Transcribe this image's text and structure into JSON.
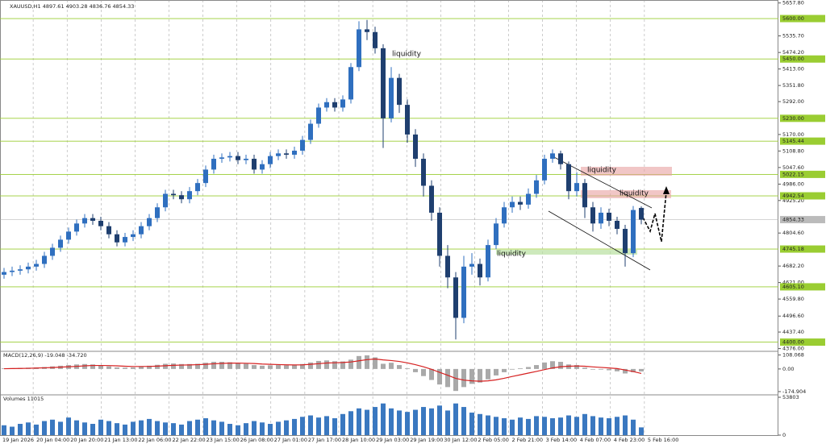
{
  "chart_data": {
    "type": "candlestick",
    "title": "XAUUSD,H1  4897.61 4903.28 4836.76 4854.33",
    "up_color": "#2f6fbf",
    "down_color": "#1f3f6f",
    "level_color": "#9acd32",
    "xlabels": [
      "19 Jan 2026",
      "20 Jan 04:00",
      "20 Jan 20:00",
      "21 Jan 13:00",
      "22 Jan 06:00",
      "22 Jan 22:00",
      "23 Jan 15:00",
      "26 Jan 08:00",
      "27 Jan 01:00",
      "27 Jan 17:00",
      "28 Jan 10:00",
      "29 Jan 03:00",
      "29 Jan 19:00",
      "30 Jan 12:00",
      "2 Feb 05:00",
      "2 Feb 21:00",
      "3 Feb 14:00",
      "4 Feb 07:00",
      "4 Feb 23:00",
      "5 Feb 16:00"
    ],
    "open": [
      4650,
      4660,
      4665,
      4670,
      4680,
      4690,
      4720,
      4750,
      4780,
      4810,
      4840,
      4860,
      4850,
      4830,
      4800,
      4770,
      4790,
      4800,
      4830,
      4860,
      4900,
      4950,
      4945,
      4930,
      4960,
      4990,
      5040,
      5080,
      5085,
      5090,
      5075,
      5080,
      5040,
      5060,
      5090,
      5100,
      5095,
      5110,
      5150,
      5210,
      5270,
      5290,
      5270,
      5300,
      5420,
      5560,
      5550,
      5490,
      5230,
      5380,
      5280,
      5170,
      5080,
      4980,
      4880,
      4720,
      4640,
      4490,
      4680,
      4690,
      4640,
      4760,
      4840,
      4900,
      4920,
      4910,
      4950,
      5000,
      5080,
      5100,
      5060,
      4960,
      4990,
      4900,
      4840,
      4880,
      4850,
      4820,
      4730,
      4897.61
    ],
    "high": [
      4675,
      4680,
      4685,
      4695,
      4705,
      4735,
      4765,
      4795,
      4825,
      4855,
      4875,
      4875,
      4865,
      4845,
      4815,
      4805,
      4815,
      4845,
      4875,
      4915,
      4965,
      4965,
      4960,
      4975,
      5005,
      5055,
      5095,
      5100,
      5105,
      5105,
      5095,
      5095,
      5075,
      5105,
      5115,
      5115,
      5125,
      5165,
      5225,
      5285,
      5305,
      5305,
      5315,
      5435,
      5590,
      5595,
      5570,
      5505,
      5420,
      5395,
      5300,
      5190,
      5100,
      5000,
      4900,
      4760,
      4660,
      4720,
      4730,
      4710,
      4780,
      4860,
      4920,
      4940,
      4940,
      4970,
      5020,
      5095,
      5115,
      5110,
      5070,
      5030,
      5005,
      4920,
      4900,
      4895,
      4865,
      4835,
      4905,
      4903.28
    ],
    "low": [
      4635,
      4645,
      4650,
      4655,
      4665,
      4675,
      4705,
      4735,
      4765,
      4795,
      4825,
      4835,
      4815,
      4785,
      4755,
      4755,
      4775,
      4785,
      4815,
      4845,
      4885,
      4930,
      4915,
      4915,
      4945,
      4975,
      5025,
      5065,
      5070,
      5060,
      5060,
      5025,
      5025,
      5045,
      5075,
      5080,
      5080,
      5095,
      5135,
      5195,
      5255,
      5255,
      5255,
      5285,
      5405,
      5520,
      5470,
      5120,
      5215,
      5250,
      5140,
      5050,
      4940,
      4850,
      4680,
      4600,
      4410,
      4470,
      4650,
      4610,
      4625,
      4745,
      4825,
      4880,
      4890,
      4895,
      4935,
      4985,
      5065,
      5040,
      4930,
      4940,
      4860,
      4810,
      4820,
      4830,
      4800,
      4680,
      4715,
      4836.76
    ],
    "close": [
      4660,
      4665,
      4670,
      4680,
      4690,
      4720,
      4750,
      4780,
      4810,
      4840,
      4860,
      4850,
      4830,
      4800,
      4770,
      4790,
      4800,
      4830,
      4860,
      4900,
      4950,
      4945,
      4930,
      4960,
      4990,
      5040,
      5080,
      5085,
      5090,
      5075,
      5080,
      5040,
      5060,
      5090,
      5100,
      5095,
      5110,
      5150,
      5210,
      5270,
      5290,
      5270,
      5300,
      5420,
      5560,
      5550,
      5490,
      5230,
      5380,
      5280,
      5170,
      5080,
      4980,
      4880,
      4720,
      4640,
      4490,
      4680,
      4690,
      4640,
      4760,
      4840,
      4900,
      4920,
      4910,
      4950,
      5000,
      5080,
      5100,
      5060,
      4960,
      4990,
      4900,
      4840,
      4880,
      4850,
      4820,
      4730,
      4890,
      4854.33
    ],
    "ylim": [
      4376,
      5657.8
    ],
    "yticks": [
      {
        "value": 5657.8,
        "label": "5657.80"
      },
      {
        "value": 5535.7,
        "label": "5535.70"
      },
      {
        "value": 5474.2,
        "label": "5474.20"
      },
      {
        "value": 5413,
        "label": "5413.00"
      },
      {
        "value": 5351.8,
        "label": "5351.80"
      },
      {
        "value": 5292,
        "label": "5292.00"
      },
      {
        "value": 5170,
        "label": "5170.00"
      },
      {
        "value": 5108.8,
        "label": "5108.80"
      },
      {
        "value": 5047.6,
        "label": "5047.60"
      },
      {
        "value": 4986,
        "label": "4986.00"
      },
      {
        "value": 4925.2,
        "label": "4925.20"
      },
      {
        "value": 4804.6,
        "label": "4804.60"
      },
      {
        "value": 4682.2,
        "label": "4682.20"
      },
      {
        "value": 4621,
        "label": "4621.00"
      },
      {
        "value": 4559.8,
        "label": "4559.80"
      },
      {
        "value": 4496.6,
        "label": "4496.60"
      },
      {
        "value": 4437.4,
        "label": "4437.40"
      },
      {
        "value": 4376,
        "label": "4376.00"
      }
    ],
    "levels": [
      {
        "value": 5600,
        "label": "5600.00"
      },
      {
        "value": 5450,
        "label": "5450.00"
      },
      {
        "value": 5230,
        "label": "5230.00"
      },
      {
        "value": 5145.44,
        "label": "5145.44"
      },
      {
        "value": 5022.15,
        "label": "5022.15"
      },
      {
        "value": 4942.54,
        "label": "4942.54"
      },
      {
        "value": 4745.18,
        "label": "4745.18"
      },
      {
        "value": 4605.1,
        "label": "4605.10"
      },
      {
        "value": 4400,
        "label": "4400.00"
      }
    ],
    "current": 4854.33,
    "annotations": [
      "liquidity",
      "liquidity",
      "liquidity",
      "liquidity"
    ],
    "macd": {
      "title": "MACD(12,26,9) -19.048 -34.720",
      "ylim": [
        -200,
        130
      ],
      "yticks": [
        108.068,
        {
          "value": 0,
          "label": "0.00"
        },
        -174.904
      ],
      "hist_color": "#a9a9a9",
      "signal_color": "#d62020",
      "histogram": [
        5,
        6,
        8,
        10,
        12,
        15,
        20,
        25,
        30,
        35,
        38,
        35,
        28,
        20,
        12,
        10,
        12,
        18,
        25,
        32,
        40,
        42,
        38,
        38,
        40,
        48,
        55,
        55,
        52,
        45,
        40,
        30,
        25,
        28,
        30,
        28,
        30,
        38,
        50,
        62,
        66,
        60,
        58,
        72,
        100,
        105,
        90,
        40,
        48,
        30,
        5,
        -25,
        -55,
        -85,
        -120,
        -140,
        -170,
        -140,
        -115,
        -105,
        -80,
        -50,
        -25,
        -5,
        5,
        15,
        30,
        50,
        60,
        55,
        35,
        30,
        10,
        -5,
        -5,
        -10,
        -18,
        -35,
        -25,
        -19.048
      ],
      "signal": [
        2,
        3,
        4,
        5,
        7,
        9,
        11,
        14,
        17,
        20,
        24,
        27,
        27,
        26,
        24,
        21,
        19,
        19,
        20,
        22,
        25,
        28,
        30,
        31,
        33,
        36,
        40,
        43,
        45,
        45,
        44,
        42,
        38,
        36,
        34,
        32,
        31,
        32,
        36,
        41,
        46,
        48,
        50,
        54,
        63,
        72,
        77,
        70,
        65,
        58,
        47,
        33,
        17,
        -3,
        -26,
        -49,
        -73,
        -86,
        -92,
        -95,
        -92,
        -84,
        -72,
        -58,
        -45,
        -32,
        -19,
        -5,
        8,
        17,
        21,
        23,
        21,
        16,
        12,
        8,
        3,
        -8,
        -20,
        -34.72
      ]
    },
    "volume": {
      "title": "Volumes 11015",
      "ylim": [
        0,
        53803
      ],
      "yticks": [
        53803,
        0
      ],
      "color": "#3a78c0",
      "values": [
        14000,
        12000,
        16000,
        18000,
        15000,
        20000,
        22000,
        19000,
        25000,
        21000,
        18000,
        16000,
        22000,
        20000,
        17000,
        15000,
        19000,
        21000,
        23000,
        20000,
        18000,
        17000,
        15000,
        20000,
        22000,
        24000,
        21000,
        19000,
        16000,
        14000,
        17000,
        20000,
        18000,
        16000,
        19000,
        21000,
        23000,
        26000,
        28000,
        25000,
        27000,
        24000,
        30000,
        34000,
        38000,
        36000,
        40000,
        45000,
        38000,
        35000,
        33000,
        36000,
        40000,
        38000,
        42000,
        35000,
        45000,
        40000,
        32000,
        30000,
        28000,
        26000,
        24000,
        22000,
        25000,
        23000,
        27000,
        26000,
        24000,
        25000,
        28000,
        26000,
        30000,
        27000,
        25000,
        24000,
        26000,
        28000,
        22000,
        11015
      ]
    }
  }
}
